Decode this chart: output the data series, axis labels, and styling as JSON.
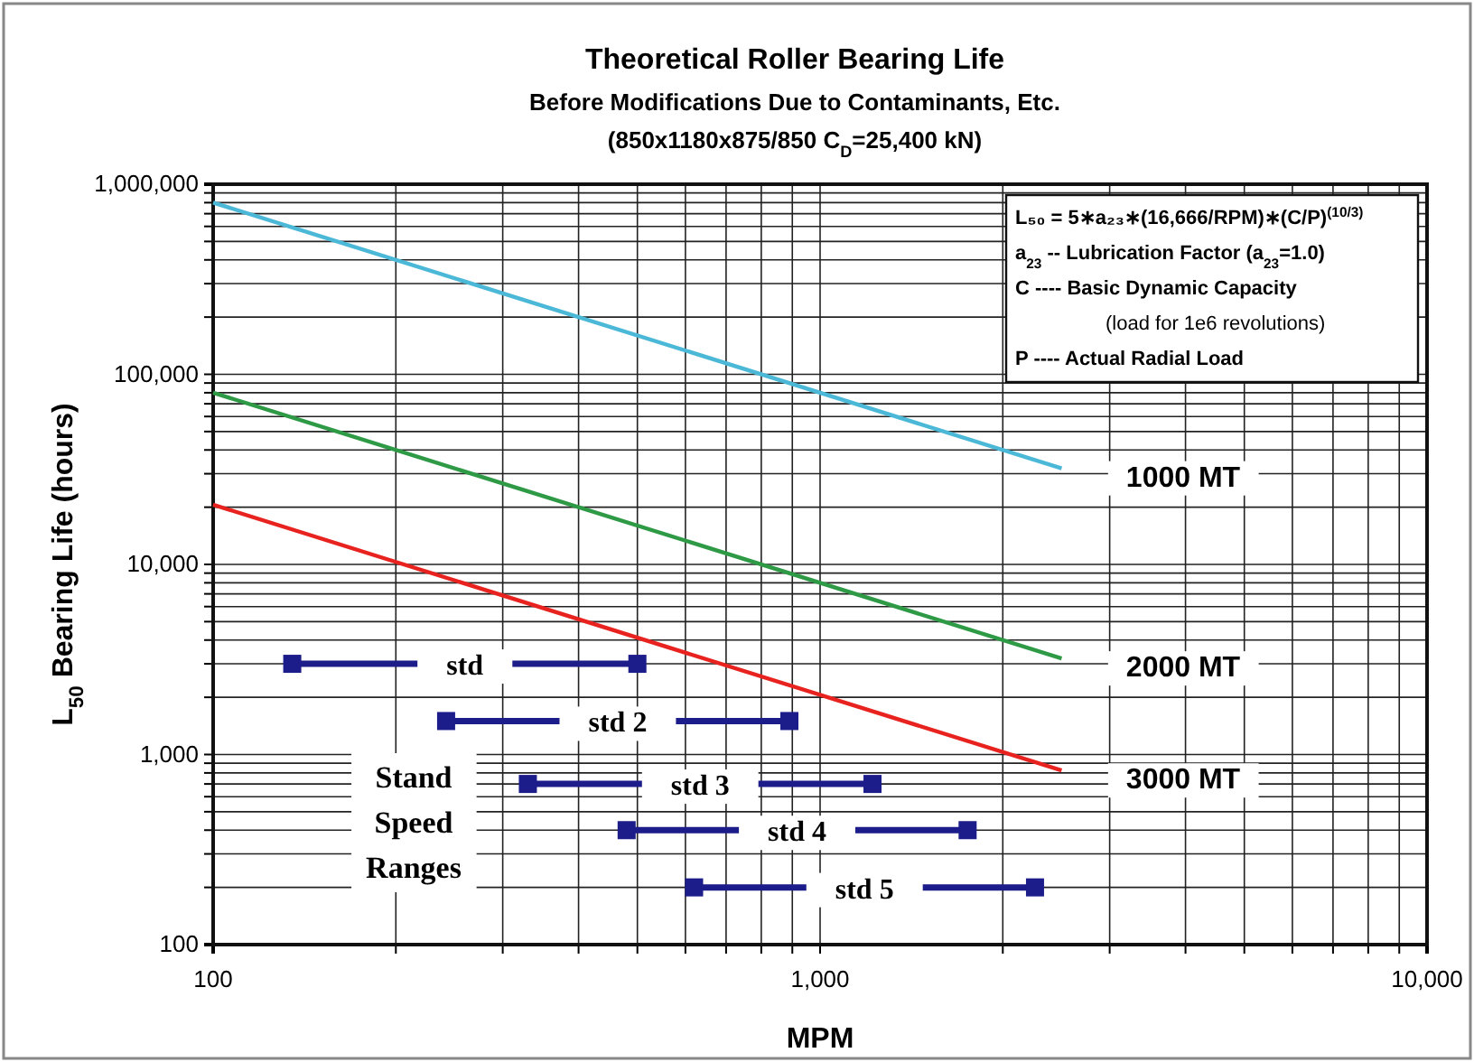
{
  "chart_data": {
    "type": "line",
    "title": "Theoretical Roller Bearing Life",
    "subtitle": "Before Modifications Due to Contaminants, Etc.\n(850x1180x875/850  C$_{D}$=25,400 kN)",
    "xlabel": "MPM",
    "ylabel": "L$_{50}$ Bearing Life (hours)",
    "log": "xy",
    "grid": true,
    "marker": "none",
    "line_style": "solid",
    "xlim": [
      100,
      10000
    ],
    "ylim": [
      100,
      1000000
    ],
    "xticks": [
      100,
      {
        "value": 200,
        "label": null
      },
      {
        "value": 300,
        "label": null
      },
      {
        "value": 400,
        "label": null
      },
      {
        "value": 500,
        "label": null
      },
      {
        "value": 600,
        "label": null
      },
      {
        "value": 700,
        "label": null
      },
      {
        "value": 800,
        "label": null
      },
      {
        "value": 900,
        "label": null
      },
      {
        "value": 1000,
        "label": "1,000"
      },
      {
        "value": 2000,
        "label": null
      },
      {
        "value": 3000,
        "label": null
      },
      {
        "value": 4000,
        "label": null
      },
      {
        "value": 5000,
        "label": null
      },
      {
        "value": 6000,
        "label": null
      },
      {
        "value": 7000,
        "label": null
      },
      {
        "value": 8000,
        "label": null
      },
      {
        "value": 9000,
        "label": null
      },
      {
        "value": 10000,
        "label": "10,000"
      }
    ],
    "yticks": [
      100,
      {
        "value": 200,
        "label": null
      },
      {
        "value": 300,
        "label": null
      },
      {
        "value": 400,
        "label": null
      },
      {
        "value": 500,
        "label": null
      },
      {
        "value": 600,
        "label": null
      },
      {
        "value": 700,
        "label": null
      },
      {
        "value": 800,
        "label": null
      },
      {
        "value": 900,
        "label": null
      },
      {
        "value": 1000,
        "label": "1,000"
      },
      {
        "value": 2000,
        "label": null
      },
      {
        "value": 3000,
        "label": null
      },
      {
        "value": 4000,
        "label": null
      },
      {
        "value": 5000,
        "label": null
      },
      {
        "value": 6000,
        "label": null
      },
      {
        "value": 7000,
        "label": null
      },
      {
        "value": 8000,
        "label": null
      },
      {
        "value": 9000,
        "label": null
      },
      {
        "value": 10000,
        "label": "10,000"
      },
      {
        "value": 20000,
        "label": null
      },
      {
        "value": 30000,
        "label": null
      },
      {
        "value": 40000,
        "label": null
      },
      {
        "value": 50000,
        "label": null
      },
      {
        "value": 60000,
        "label": null
      },
      {
        "value": 70000,
        "label": null
      },
      {
        "value": 80000,
        "label": null
      },
      {
        "value": 90000,
        "label": null
      },
      {
        "value": 100000,
        "label": "100,000"
      },
      {
        "value": 200000,
        "label": null
      },
      {
        "value": 300000,
        "label": null
      },
      {
        "value": 400000,
        "label": null
      },
      {
        "value": 500000,
        "label": null
      },
      {
        "value": 600000,
        "label": null
      },
      {
        "value": 700000,
        "label": null
      },
      {
        "value": 800000,
        "label": null
      },
      {
        "value": 900000,
        "label": null
      },
      {
        "value": 1000000,
        "label": "1,000,000"
      }
    ],
    "series": [
      {
        "name": "1000 MT",
        "color": "#4bb8d8",
        "x": [
          100,
          2500
        ],
        "values": [
          800000,
          32000
        ]
      },
      {
        "name": "2000 MT",
        "color": "#2e9a46",
        "x": [
          100,
          2500
        ],
        "values": [
          80000,
          3200
        ]
      },
      {
        "name": "3000 MT",
        "color": "#e8231f",
        "x": [
          100,
          2500
        ],
        "values": [
          20600,
          824
        ]
      },
      {
        "name": "std",
        "color": "#1c1c8a",
        "marker": "square",
        "x": [
          135,
          500
        ],
        "values": [
          3000,
          3000
        ]
      },
      {
        "name": "std 2",
        "color": "#1c1c8a",
        "marker": "square",
        "x": [
          242,
          890
        ],
        "values": [
          1500,
          1500
        ]
      },
      {
        "name": "std 3",
        "color": "#1c1c8a",
        "marker": "square",
        "x": [
          330,
          1220
        ],
        "values": [
          700,
          700
        ]
      },
      {
        "name": "std 4",
        "color": "#1c1c8a",
        "marker": "square",
        "x": [
          480,
          1750
        ],
        "values": [
          400,
          400
        ]
      },
      {
        "name": "std 5",
        "color": "#1c1c8a",
        "marker": "square",
        "x": [
          620,
          2260
        ],
        "values": [
          200,
          200
        ]
      }
    ],
    "annotations": [
      "L₅₀ = 5∗a₂₃∗(16,666/RPM)∗(C/P)$^{(10/3)}$",
      "a$_{23}$ -- Lubrication Factor (a$_{23}$=1.0)",
      "C ---- Basic Dynamic Capacity",
      "(load for 1e6 revolutions)",
      "P ---- Actual Radial Load",
      "Stand\nSpeed\nRanges"
    ]
  }
}
